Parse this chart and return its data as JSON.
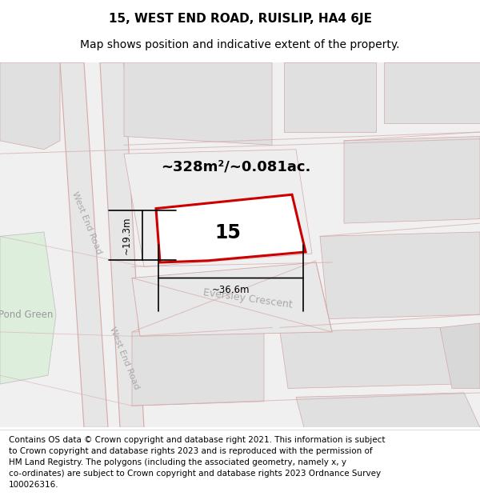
{
  "title_line1": "15, WEST END ROAD, RUISLIP, HA4 6JE",
  "title_line2": "Map shows position and indicative extent of the property.",
  "area_text": "~328m²/~0.081ac.",
  "label_number": "15",
  "dim_width": "~36.6m",
  "dim_height": "~19.3m",
  "road_label1": "West End Road",
  "road_label2": "West End Road",
  "road_label3": "Eversley Crescent",
  "place_label": "Pond Green",
  "copyright_wrapped": "Contains OS data © Crown copyright and database right 2021. This information is subject\nto Crown copyright and database rights 2023 and is reproduced with the permission of\nHM Land Registry. The polygons (including the associated geometry, namely x, y\nco-ordinates) are subject to Crown copyright and database rights 2023 Ordnance Survey\n100026316.",
  "bg_color": "#ffffff",
  "map_bg": "#f0f0f0",
  "road_fill": "#e8e8e8",
  "road_stroke": "#d4a8a8",
  "plot_stroke": "#cc0000",
  "plot_fill": "#ffffff",
  "green_fill": "#ddeedd",
  "block_fill": "#e0e0e0",
  "title_fontsize": 11,
  "subtitle_fontsize": 10,
  "copyright_fontsize": 7.5,
  "road_label_color": "#aaaaaa",
  "place_label_color": "#999999"
}
